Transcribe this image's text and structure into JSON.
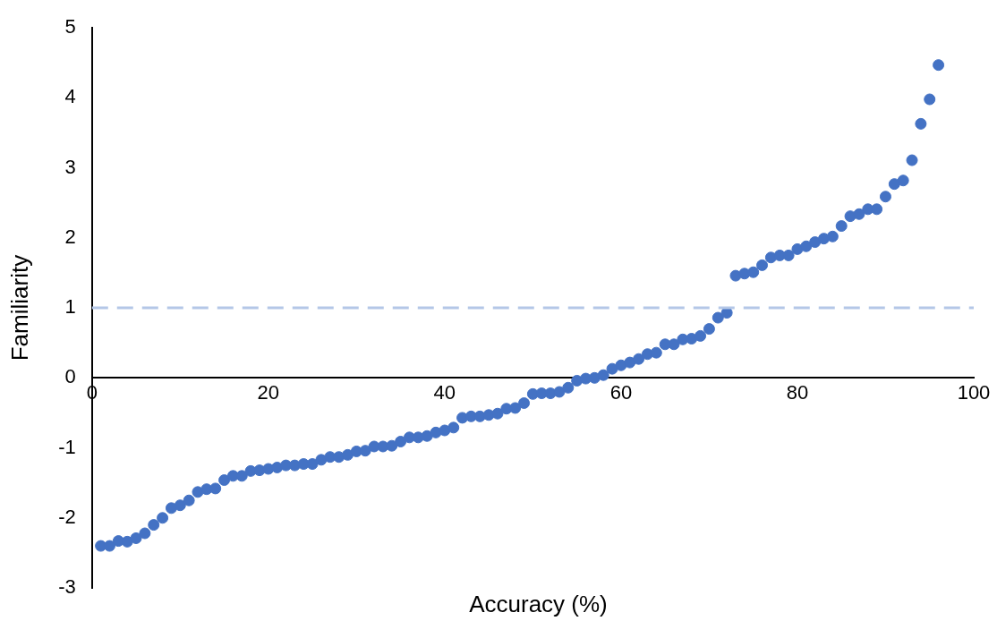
{
  "chart_data": {
    "type": "scatter",
    "xlabel": "Accuracy (%)",
    "ylabel": "Familiarity",
    "x": [
      1,
      2,
      3,
      4,
      5,
      6,
      7,
      8,
      9,
      10,
      11,
      12,
      13,
      14,
      15,
      16,
      17,
      18,
      19,
      20,
      21,
      22,
      23,
      24,
      25,
      26,
      27,
      28,
      29,
      30,
      31,
      32,
      33,
      34,
      35,
      36,
      37,
      38,
      39,
      40,
      41,
      42,
      43,
      44,
      45,
      46,
      47,
      48,
      49,
      50,
      51,
      52,
      53,
      54,
      55,
      56,
      57,
      58,
      59,
      60,
      61,
      62,
      63,
      64,
      65,
      66,
      67,
      68,
      69,
      70,
      71,
      72,
      73,
      74,
      75,
      76,
      77,
      78,
      79,
      80,
      81,
      82,
      83,
      84,
      85,
      86,
      87,
      88,
      89,
      90,
      91,
      92,
      93,
      94,
      95,
      96
    ],
    "series": [
      {
        "color": "#4472c4",
        "values": [
          -2.4,
          -2.4,
          -2.33,
          -2.34,
          -2.29,
          -2.22,
          -2.1,
          -2.0,
          -1.86,
          -1.82,
          -1.75,
          -1.63,
          -1.59,
          -1.58,
          -1.46,
          -1.4,
          -1.4,
          -1.33,
          -1.32,
          -1.3,
          -1.28,
          -1.25,
          -1.25,
          -1.23,
          -1.23,
          -1.17,
          -1.13,
          -1.13,
          -1.1,
          -1.05,
          -1.04,
          -0.98,
          -0.98,
          -0.97,
          -0.91,
          -0.85,
          -0.85,
          -0.83,
          -0.78,
          -0.75,
          -0.71,
          -0.57,
          -0.55,
          -0.55,
          -0.53,
          -0.51,
          -0.44,
          -0.43,
          -0.36,
          -0.23,
          -0.22,
          -0.22,
          -0.2,
          -0.14,
          -0.04,
          -0.01,
          0.0,
          0.04,
          0.13,
          0.18,
          0.22,
          0.27,
          0.34,
          0.36,
          0.48,
          0.48,
          0.55,
          0.56,
          0.6,
          0.7,
          0.86,
          0.93,
          1.46,
          1.49,
          1.51,
          1.61,
          1.72,
          1.75,
          1.75,
          1.84,
          1.88,
          1.94,
          1.99,
          2.02,
          2.17,
          2.31,
          2.34,
          2.41,
          2.41,
          2.59,
          2.77,
          2.82,
          3.11,
          3.63,
          3.98,
          4.47
        ]
      }
    ],
    "xlim": [
      0,
      100
    ],
    "xticks": [
      0,
      20,
      40,
      60,
      80,
      100
    ],
    "ylim": [
      -3,
      5
    ],
    "yticks": [
      -3,
      -2,
      -1,
      0,
      1,
      2,
      3,
      4,
      5
    ],
    "ref_lines": [
      {
        "axis": "y",
        "value": 1,
        "color": "#b4c7e7",
        "line_style": "dashed"
      }
    ],
    "grid": false,
    "legend": false,
    "marker": "circle"
  }
}
